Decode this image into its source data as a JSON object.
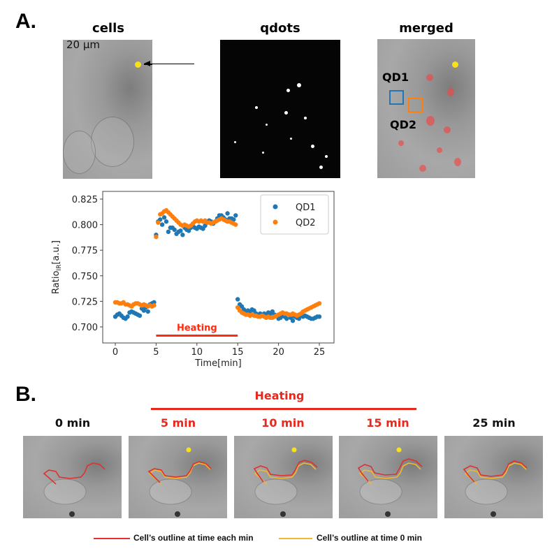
{
  "panel_a": {
    "label": "A.",
    "images": [
      {
        "title": "cells",
        "scale_bar": "20 μm"
      },
      {
        "title": "qdots"
      },
      {
        "title": "merged",
        "roi_labels": [
          "QD1",
          "QD2"
        ]
      }
    ]
  },
  "panel_b": {
    "label": "B.",
    "heating_label": "Heating",
    "frames": [
      {
        "time": "0 min",
        "heated": false
      },
      {
        "time": "5 min",
        "heated": true
      },
      {
        "time": "10 min",
        "heated": true
      },
      {
        "time": "15 min",
        "heated": true
      },
      {
        "time": "25 min",
        "heated": false
      }
    ],
    "legend": [
      {
        "label": "Cell’s outline at time each min",
        "color": "#e03030"
      },
      {
        "label": "Cell’s outline at time 0 min",
        "color": "#f0b830"
      }
    ]
  },
  "colors": {
    "qd1": "#1f77b4",
    "qd2": "#ff7f0e",
    "heating": "#ff2a10"
  },
  "chart_data": {
    "type": "scatter",
    "xlabel": "Time[min]",
    "ylabel_main": "Ratio",
    "ylabel_sub": "IR",
    "ylabel_unit": "[a.u.]",
    "xlim": [
      -1.3,
      27
    ],
    "ylim": [
      0.6855,
      0.8325
    ],
    "xticks": [
      0,
      5,
      10,
      15,
      20,
      25
    ],
    "yticks": [
      0.7,
      0.725,
      0.75,
      0.775,
      0.8,
      0.825
    ],
    "ytick_labels": [
      "0.700",
      "0.725",
      "0.750",
      "0.775",
      "0.800",
      "0.825"
    ],
    "legend_position": "top-right",
    "annotation": {
      "text": "Heating",
      "x_range": [
        5,
        15
      ],
      "y": 0.6915
    },
    "x_step": 0.25,
    "x_start": 0,
    "series": [
      {
        "name": "QD1",
        "values": [
          0.71,
          0.712,
          0.713,
          0.711,
          0.709,
          0.708,
          0.71,
          0.714,
          0.715,
          0.714,
          0.713,
          0.712,
          0.711,
          0.718,
          0.716,
          0.719,
          0.715,
          0.722,
          0.723,
          0.724,
          0.79,
          0.803,
          0.805,
          0.8,
          0.807,
          0.803,
          0.793,
          0.797,
          0.797,
          0.795,
          0.791,
          0.793,
          0.794,
          0.79,
          0.797,
          0.795,
          0.794,
          0.797,
          0.799,
          0.797,
          0.796,
          0.798,
          0.797,
          0.796,
          0.799,
          0.802,
          0.804,
          0.803,
          0.801,
          0.803,
          0.806,
          0.809,
          0.809,
          0.807,
          0.805,
          0.811,
          0.806,
          0.806,
          0.805,
          0.809,
          0.727,
          0.722,
          0.72,
          0.717,
          0.715,
          0.716,
          0.714,
          0.717,
          0.716,
          0.713,
          0.712,
          0.713,
          0.712,
          0.713,
          0.711,
          0.714,
          0.713,
          0.715,
          0.712,
          0.711,
          0.708,
          0.709,
          0.711,
          0.71,
          0.708,
          0.712,
          0.709,
          0.706,
          0.71,
          0.709,
          0.708,
          0.711,
          0.71,
          0.711,
          0.71,
          0.709,
          0.708,
          0.708,
          0.709,
          0.71,
          0.71
        ]
      },
      {
        "name": "QD2",
        "values": [
          0.724,
          0.724,
          0.723,
          0.723,
          0.724,
          0.722,
          0.722,
          0.721,
          0.72,
          0.722,
          0.723,
          0.723,
          0.722,
          0.721,
          0.722,
          0.721,
          0.72,
          0.721,
          0.72,
          0.721,
          0.788,
          0.802,
          0.81,
          0.811,
          0.813,
          0.814,
          0.812,
          0.81,
          0.808,
          0.806,
          0.804,
          0.802,
          0.8,
          0.799,
          0.8,
          0.799,
          0.798,
          0.799,
          0.801,
          0.803,
          0.804,
          0.803,
          0.804,
          0.803,
          0.804,
          0.802,
          0.802,
          0.801,
          0.802,
          0.803,
          0.804,
          0.805,
          0.806,
          0.805,
          0.804,
          0.803,
          0.803,
          0.802,
          0.801,
          0.8,
          0.719,
          0.716,
          0.714,
          0.713,
          0.712,
          0.712,
          0.711,
          0.712,
          0.711,
          0.711,
          0.71,
          0.71,
          0.711,
          0.71,
          0.709,
          0.71,
          0.709,
          0.709,
          0.71,
          0.711,
          0.712,
          0.713,
          0.714,
          0.713,
          0.713,
          0.712,
          0.712,
          0.713,
          0.712,
          0.711,
          0.712,
          0.713,
          0.715,
          0.716,
          0.717,
          0.718,
          0.719,
          0.72,
          0.721,
          0.722,
          0.723
        ]
      }
    ]
  }
}
